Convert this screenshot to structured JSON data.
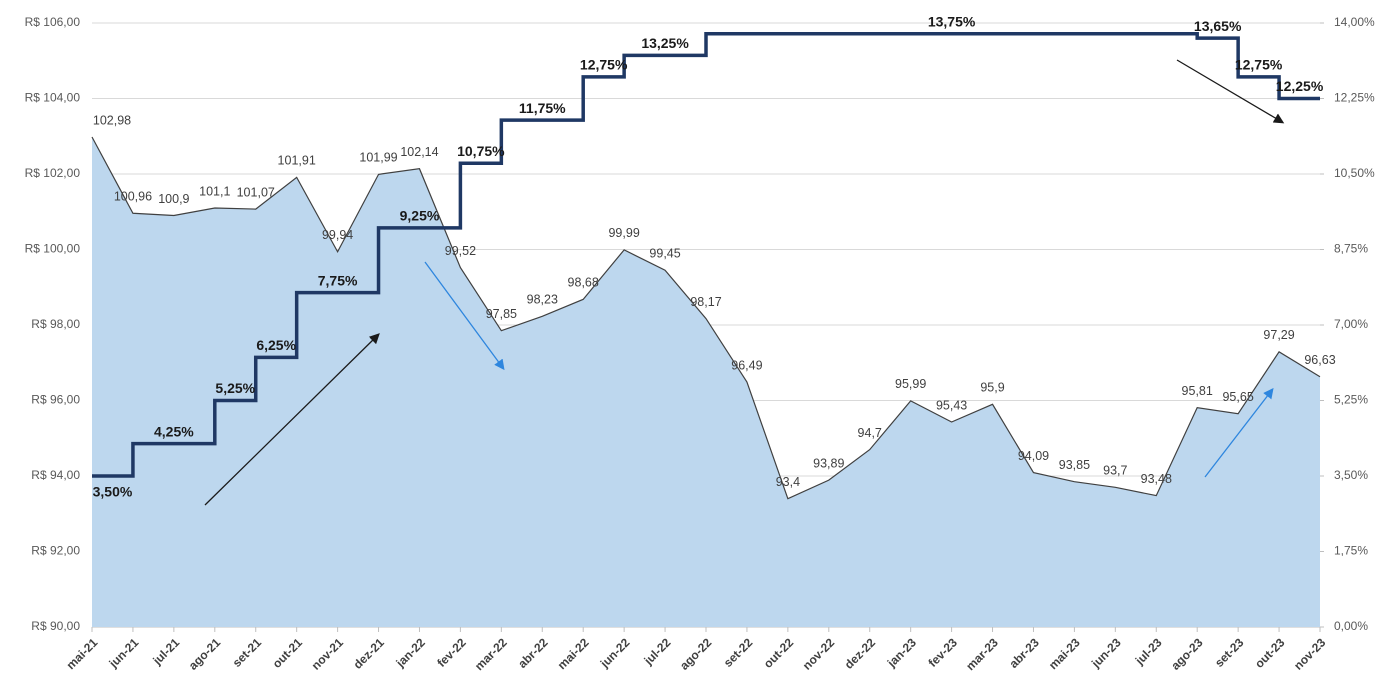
{
  "chart_data": {
    "type": "area-step",
    "categories": [
      "mai-21",
      "jun-21",
      "jul-21",
      "ago-21",
      "set-21",
      "out-21",
      "nov-21",
      "dez-21",
      "jan-22",
      "fev-22",
      "mar-22",
      "abr-22",
      "mai-22",
      "jun-22",
      "jul-22",
      "ago-22",
      "set-22",
      "out-22",
      "nov-22",
      "dez-22",
      "jan-23",
      "fev-23",
      "mar-23",
      "abr-23",
      "mai-23",
      "jun-23",
      "jul-23",
      "ago-23",
      "set-23",
      "out-23",
      "nov-23"
    ],
    "series": [
      {
        "type": "area",
        "color": "#bdd7ee",
        "values": [
          102.98,
          100.96,
          100.9,
          101.1,
          101.07,
          101.91,
          99.94,
          101.99,
          102.14,
          99.52,
          97.85,
          98.23,
          98.68,
          99.99,
          99.45,
          98.17,
          96.49,
          93.4,
          93.89,
          94.7,
          95.99,
          95.43,
          95.9,
          94.09,
          93.85,
          93.7,
          93.48,
          95.81,
          95.65,
          97.29,
          96.63
        ],
        "value_labels": [
          "102,98",
          "100,96",
          "100,9",
          "101,1",
          "101,07",
          "101,91",
          "99,94",
          "101,99",
          "102,14",
          "99,52",
          "97,85",
          "98,23",
          "98,68",
          "99,99",
          "99,45",
          "98,17",
          "96,49",
          "93,4",
          "93,89",
          "94,7",
          "95,99",
          "95,43",
          "95,9",
          "94,09",
          "93,85",
          "93,7",
          "93,48",
          "95,81",
          "95,65",
          "97,29",
          "96,63"
        ]
      },
      {
        "type": "step",
        "axis": "y2",
        "color": "#1f3864",
        "values": [
          3.5,
          4.25,
          4.25,
          5.25,
          6.25,
          7.75,
          7.75,
          9.25,
          9.25,
          10.75,
          11.75,
          11.75,
          12.75,
          13.25,
          13.25,
          13.75,
          13.75,
          13.75,
          13.75,
          13.75,
          13.75,
          13.75,
          13.75,
          13.75,
          13.75,
          13.75,
          13.75,
          13.65,
          12.75,
          12.25,
          12.25
        ],
        "value_labels": [
          "3,50%",
          "4,25%",
          null,
          "5,25%",
          "6,25%",
          "7,75%",
          null,
          "9,25%",
          null,
          "10,75%",
          "11,75%",
          null,
          "12,75%",
          "13,25%",
          null,
          "13,75%",
          null,
          null,
          null,
          null,
          null,
          null,
          null,
          null,
          null,
          null,
          null,
          "13,65%",
          "12,75%",
          "12,25%",
          null
        ]
      }
    ],
    "ylim": [
      90,
      106
    ],
    "yticks": [
      {
        "value": 90,
        "label": "R$ 90,00"
      },
      {
        "value": 92,
        "label": "R$ 92,00"
      },
      {
        "value": 94,
        "label": "R$ 94,00"
      },
      {
        "value": 96,
        "label": "R$ 96,00"
      },
      {
        "value": 98,
        "label": "R$ 98,00"
      },
      {
        "value": 100,
        "label": "R$ 100,00"
      },
      {
        "value": 102,
        "label": "R$ 102,00"
      },
      {
        "value": 104,
        "label": "R$ 104,00"
      },
      {
        "value": 106,
        "label": "R$ 106,00"
      }
    ],
    "y2lim": [
      0,
      14
    ],
    "y2ticks": [
      {
        "value": 0,
        "label": "0,00%"
      },
      {
        "value": 1.75,
        "label": "1,75%"
      },
      {
        "value": 3.5,
        "label": "3,50%"
      },
      {
        "value": 5.25,
        "label": "5,25%"
      },
      {
        "value": 7,
        "label": "7,00%"
      },
      {
        "value": 8.75,
        "label": "8,75%"
      },
      {
        "value": 10.5,
        "label": "10,50%"
      },
      {
        "value": 12.25,
        "label": "12,25%"
      },
      {
        "value": 14,
        "label": "14,00%"
      }
    ],
    "grid": true
  }
}
